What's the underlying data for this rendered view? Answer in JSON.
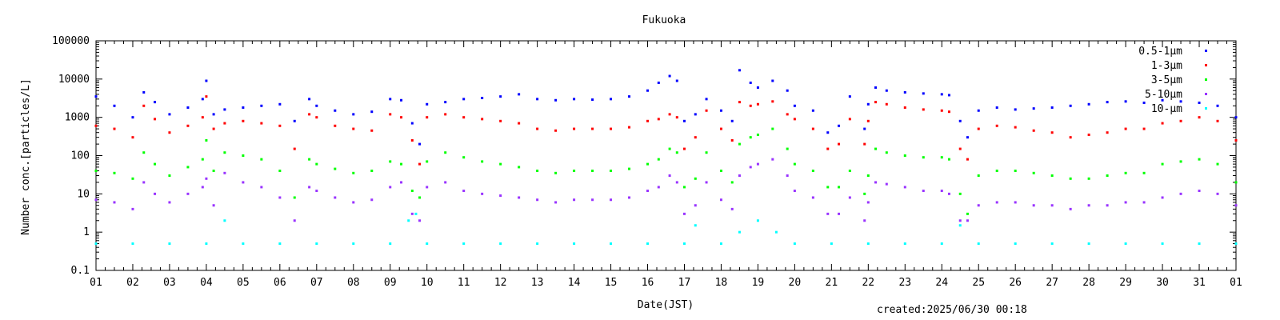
{
  "chart_data": {
    "type": "scatter",
    "title": "Fukuoka",
    "xlabel": "Date(JST)",
    "ylabel": "Number conc.[particles/L]",
    "xscale": "linear",
    "yscale": "log",
    "xlim": [
      1,
      32
    ],
    "ylim": [
      0.1,
      100000
    ],
    "x_tick_labels": [
      "01",
      "02",
      "03",
      "04",
      "05",
      "06",
      "07",
      "08",
      "09",
      "10",
      "11",
      "12",
      "13",
      "14",
      "15",
      "16",
      "17",
      "18",
      "19",
      "20",
      "21",
      "22",
      "23",
      "24",
      "25",
      "26",
      "27",
      "28",
      "29",
      "30",
      "31",
      "01"
    ],
    "y_tick_labels": [
      "0.1",
      "1",
      "10",
      "100",
      "1000",
      "10000",
      "100000"
    ],
    "y_tick_values": [
      0.1,
      1,
      10,
      100,
      1000,
      10000,
      100000
    ],
    "grid": false,
    "legend_position": "top-right",
    "series": [
      {
        "name": "0.5-1μm",
        "color": "#0000ff",
        "x": [
          1.0,
          1.5,
          2.0,
          2.3,
          2.6,
          3.0,
          3.5,
          3.9,
          4.0,
          4.2,
          4.5,
          5.0,
          5.5,
          6.0,
          6.4,
          6.8,
          7.0,
          7.5,
          8.0,
          8.5,
          9.0,
          9.3,
          9.6,
          9.8,
          10.0,
          10.5,
          11.0,
          11.5,
          12.0,
          12.5,
          13.0,
          13.5,
          14.0,
          14.5,
          15.0,
          15.5,
          16.0,
          16.3,
          16.6,
          16.8,
          17.0,
          17.3,
          17.6,
          18.0,
          18.3,
          18.5,
          18.8,
          19.0,
          19.4,
          19.8,
          20.0,
          20.5,
          20.9,
          21.2,
          21.5,
          21.9,
          22.0,
          22.2,
          22.5,
          23.0,
          23.5,
          24.0,
          24.2,
          24.5,
          24.7,
          25.0,
          25.5,
          26.0,
          26.5,
          27.0,
          27.5,
          28.0,
          28.5,
          29.0,
          29.5,
          30.0,
          30.5,
          31.0,
          31.5,
          32.0
        ],
        "y": [
          3500,
          2000,
          1000,
          4500,
          2500,
          1200,
          1800,
          3000,
          9000,
          1200,
          1600,
          1800,
          2000,
          2200,
          800,
          3000,
          2000,
          1500,
          1200,
          1400,
          3000,
          2800,
          700,
          200,
          2200,
          2500,
          3000,
          3200,
          3500,
          4000,
          3000,
          2800,
          3000,
          2900,
          3000,
          3500,
          5000,
          8000,
          12000,
          9000,
          800,
          1200,
          3000,
          1500,
          800,
          17000,
          8000,
          6000,
          9000,
          5000,
          2000,
          1500,
          400,
          600,
          3500,
          500,
          2200,
          6000,
          5000,
          4500,
          4200,
          4000,
          3800,
          800,
          300,
          1500,
          1800,
          1600,
          1700,
          1800,
          2000,
          2200,
          2500,
          2600,
          2400,
          2800,
          2600,
          2400,
          2000,
          1000
        ]
      },
      {
        "name": "1-3μm",
        "color": "#ff0000",
        "x": [
          1.0,
          1.5,
          2.0,
          2.3,
          2.6,
          3.0,
          3.5,
          3.9,
          4.0,
          4.2,
          4.5,
          5.0,
          5.5,
          6.0,
          6.4,
          6.8,
          7.0,
          7.5,
          8.0,
          8.5,
          9.0,
          9.3,
          9.6,
          9.8,
          10.0,
          10.5,
          11.0,
          11.5,
          12.0,
          12.5,
          13.0,
          13.5,
          14.0,
          14.5,
          15.0,
          15.5,
          16.0,
          16.3,
          16.6,
          16.8,
          17.0,
          17.3,
          17.6,
          18.0,
          18.3,
          18.5,
          18.8,
          19.0,
          19.4,
          19.8,
          20.0,
          20.5,
          20.9,
          21.2,
          21.5,
          21.9,
          22.0,
          22.2,
          22.5,
          23.0,
          23.5,
          24.0,
          24.2,
          24.5,
          24.7,
          25.0,
          25.5,
          26.0,
          26.5,
          27.0,
          27.5,
          28.0,
          28.5,
          29.0,
          29.5,
          30.0,
          30.5,
          31.0,
          31.5,
          32.0
        ],
        "y": [
          600,
          500,
          300,
          2000,
          900,
          400,
          600,
          1000,
          3500,
          500,
          700,
          800,
          700,
          600,
          150,
          1200,
          1000,
          600,
          500,
          450,
          1200,
          1000,
          250,
          60,
          1000,
          1200,
          1000,
          900,
          800,
          700,
          500,
          450,
          500,
          500,
          500,
          550,
          800,
          900,
          1200,
          1000,
          150,
          300,
          1500,
          500,
          250,
          2500,
          2000,
          2200,
          2600,
          1200,
          900,
          500,
          150,
          200,
          900,
          200,
          800,
          2500,
          2200,
          1800,
          1600,
          1500,
          1400,
          150,
          80,
          500,
          600,
          550,
          450,
          400,
          300,
          350,
          400,
          500,
          500,
          700,
          800,
          1000,
          800,
          250
        ]
      },
      {
        "name": "3-5μm",
        "color": "#00ff00",
        "x": [
          1.0,
          1.5,
          2.0,
          2.3,
          2.6,
          3.0,
          3.5,
          3.9,
          4.0,
          4.2,
          4.5,
          5.0,
          5.5,
          6.0,
          6.4,
          6.8,
          7.0,
          7.5,
          8.0,
          8.5,
          9.0,
          9.3,
          9.6,
          9.8,
          10.0,
          10.5,
          11.0,
          11.5,
          12.0,
          12.5,
          13.0,
          13.5,
          14.0,
          14.5,
          15.0,
          15.5,
          16.0,
          16.3,
          16.6,
          16.8,
          17.0,
          17.3,
          17.6,
          18.0,
          18.3,
          18.5,
          18.8,
          19.0,
          19.4,
          19.8,
          20.0,
          20.5,
          20.9,
          21.2,
          21.5,
          21.9,
          22.0,
          22.2,
          22.5,
          23.0,
          23.5,
          24.0,
          24.2,
          24.5,
          24.7,
          25.0,
          25.5,
          26.0,
          26.5,
          27.0,
          27.5,
          28.0,
          28.5,
          29.0,
          29.5,
          30.0,
          30.5,
          31.0,
          31.5,
          32.0
        ],
        "y": [
          40,
          35,
          25,
          120,
          60,
          30,
          50,
          80,
          250,
          40,
          120,
          100,
          80,
          40,
          8,
          80,
          60,
          45,
          35,
          40,
          70,
          60,
          12,
          8,
          70,
          120,
          90,
          70,
          60,
          50,
          40,
          35,
          40,
          40,
          40,
          45,
          60,
          80,
          150,
          120,
          15,
          25,
          120,
          40,
          20,
          200,
          300,
          350,
          500,
          150,
          60,
          40,
          15,
          15,
          40,
          10,
          30,
          150,
          120,
          100,
          90,
          90,
          80,
          10,
          3,
          30,
          40,
          40,
          35,
          30,
          25,
          25,
          30,
          35,
          35,
          60,
          70,
          80,
          60,
          20
        ]
      },
      {
        "name": "5-10μm",
        "color": "#9933ff",
        "x": [
          1.0,
          1.5,
          2.0,
          2.3,
          2.6,
          3.0,
          3.5,
          3.9,
          4.0,
          4.2,
          4.5,
          5.0,
          5.5,
          6.0,
          6.4,
          6.8,
          7.0,
          7.5,
          8.0,
          8.5,
          9.0,
          9.3,
          9.6,
          9.8,
          10.0,
          10.5,
          11.0,
          11.5,
          12.0,
          12.5,
          13.0,
          13.5,
          14.0,
          14.5,
          15.0,
          15.5,
          16.0,
          16.3,
          16.6,
          16.8,
          17.0,
          17.3,
          17.6,
          18.0,
          18.3,
          18.5,
          18.8,
          19.0,
          19.4,
          19.8,
          20.0,
          20.5,
          20.9,
          21.2,
          21.5,
          21.9,
          22.0,
          22.2,
          22.5,
          23.0,
          23.5,
          24.0,
          24.2,
          24.5,
          24.7,
          25.0,
          25.5,
          26.0,
          26.5,
          27.0,
          27.5,
          28.0,
          28.5,
          29.0,
          29.5,
          30.0,
          30.5,
          31.0,
          31.5,
          32.0
        ],
        "y": [
          7,
          6,
          4,
          20,
          10,
          6,
          10,
          15,
          25,
          5,
          35,
          20,
          15,
          8,
          2,
          15,
          12,
          8,
          6,
          7,
          15,
          20,
          3,
          2,
          15,
          20,
          12,
          10,
          9,
          8,
          7,
          6,
          7,
          7,
          7,
          8,
          12,
          15,
          30,
          20,
          3,
          5,
          20,
          7,
          4,
          30,
          50,
          60,
          80,
          30,
          12,
          8,
          3,
          3,
          8,
          2,
          6,
          20,
          18,
          15,
          12,
          12,
          10,
          2,
          2,
          5,
          6,
          6,
          5,
          5,
          4,
          5,
          5,
          6,
          6,
          8,
          10,
          12,
          10,
          5
        ]
      },
      {
        "name": "10-μm",
        "color": "#00ffff",
        "x": [
          1.0,
          2.0,
          3.0,
          4.0,
          4.5,
          5.0,
          6.0,
          7.0,
          8.0,
          9.0,
          9.5,
          9.7,
          10.0,
          11.0,
          12.0,
          13.0,
          14.0,
          15.0,
          16.0,
          17.0,
          17.3,
          18.0,
          18.5,
          19.0,
          19.5,
          20.0,
          21.0,
          22.0,
          23.0,
          24.0,
          24.5,
          25.0,
          26.0,
          27.0,
          28.0,
          29.0,
          30.0,
          31.0,
          32.0
        ],
        "y": [
          0.5,
          0.5,
          0.5,
          0.5,
          2,
          0.5,
          0.5,
          0.5,
          0.5,
          0.5,
          2,
          3,
          0.5,
          0.5,
          0.5,
          0.5,
          0.5,
          0.5,
          0.5,
          0.5,
          1.5,
          0.5,
          1,
          2,
          1,
          0.5,
          0.5,
          0.5,
          0.5,
          0.5,
          1.5,
          0.5,
          0.5,
          0.5,
          0.5,
          0.5,
          0.5,
          0.5,
          0.5
        ]
      }
    ]
  },
  "footer": {
    "created": "created:2025/06/30 00:18"
  }
}
